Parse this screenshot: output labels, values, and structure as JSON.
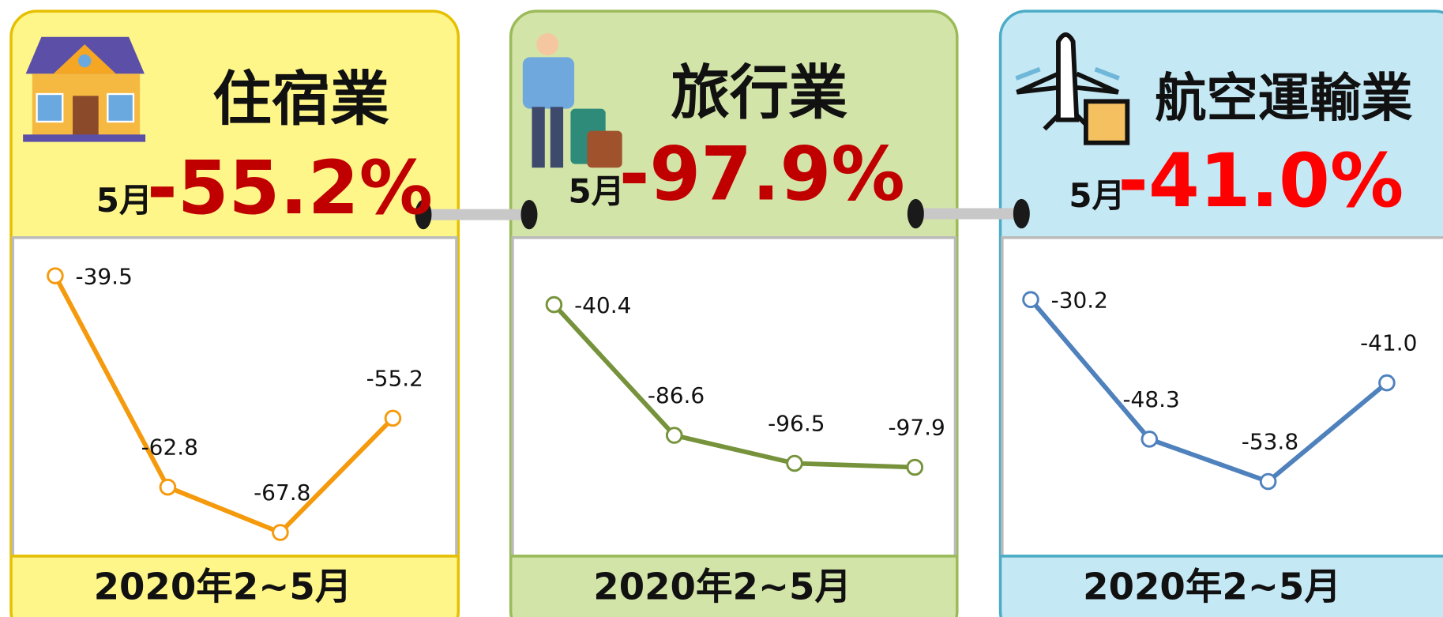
{
  "chart_data": [
    {
      "type": "line",
      "title": "住宿業",
      "period": "5月",
      "headline": "-55.2%",
      "xlabel": "2020年2~5月",
      "categories": [
        null,
        null,
        null,
        null
      ],
      "values": [
        -39.5,
        -62.8,
        -67.8,
        -55.2
      ],
      "color": "#f59a0c",
      "ylim": [
        -70,
        -36
      ]
    },
    {
      "type": "line",
      "title": "旅行業",
      "period": "5月",
      "headline": "-97.9%",
      "xlabel": "2020年2~5月",
      "categories": [
        null,
        null,
        null,
        null
      ],
      "values": [
        -40.4,
        -86.6,
        -96.5,
        -97.9
      ],
      "color": "#76933c",
      "ylim": [
        -128,
        -19
      ]
    },
    {
      "type": "line",
      "title": "航空運輸業",
      "period": "5月",
      "headline": "-41.0%",
      "xlabel": "2020年2~5月",
      "categories": [
        null,
        null,
        null,
        null
      ],
      "values": [
        -30.2,
        -48.3,
        -53.8,
        -41.0
      ],
      "value_labels": [
        "-30.2",
        "-48.3",
        "-53.8",
        "-41.0"
      ],
      "color": "#4f81bd",
      "ylim": [
        -63,
        -23
      ]
    }
  ]
}
